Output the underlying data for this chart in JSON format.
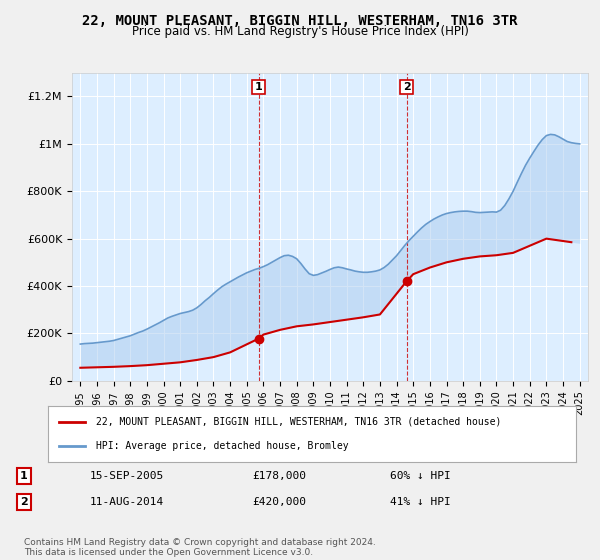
{
  "title": "22, MOUNT PLEASANT, BIGGIN HILL, WESTERHAM, TN16 3TR",
  "subtitle": "Price paid vs. HM Land Registry's House Price Index (HPI)",
  "legend_label_red": "22, MOUNT PLEASANT, BIGGIN HILL, WESTERHAM, TN16 3TR (detached house)",
  "legend_label_blue": "HPI: Average price, detached house, Bromley",
  "footer": "Contains HM Land Registry data © Crown copyright and database right 2024.\nThis data is licensed under the Open Government Licence v3.0.",
  "transaction1_label": "1",
  "transaction1_date": "15-SEP-2005",
  "transaction1_price": "£178,000",
  "transaction1_hpi": "60% ↓ HPI",
  "transaction2_label": "2",
  "transaction2_date": "11-AUG-2014",
  "transaction2_price": "£420,000",
  "transaction2_hpi": "41% ↓ HPI",
  "transaction1_x": 2005.71,
  "transaction1_y": 178000,
  "transaction2_x": 2014.6,
  "transaction2_y": 420000,
  "ylim": [
    0,
    1300000
  ],
  "xlim": [
    1994.5,
    2025.5
  ],
  "yticks": [
    0,
    200000,
    400000,
    600000,
    800000,
    1000000,
    1200000
  ],
  "ytick_labels": [
    "£0",
    "£200K",
    "£400K",
    "£600K",
    "£800K",
    "£1M",
    "£1.2M"
  ],
  "xticks": [
    1995,
    1996,
    1997,
    1998,
    1999,
    2000,
    2001,
    2002,
    2003,
    2004,
    2005,
    2006,
    2007,
    2008,
    2009,
    2010,
    2011,
    2012,
    2013,
    2014,
    2015,
    2016,
    2017,
    2018,
    2019,
    2020,
    2021,
    2022,
    2023,
    2024,
    2025
  ],
  "background_color": "#ddeeff",
  "plot_bg_color": "#ddeeff",
  "line_color_red": "#cc0000",
  "line_color_blue": "#6699cc",
  "marker_color_red": "#cc0000",
  "shade_color": "#aaccee",
  "vline_color": "#cc0000",
  "hpi_years": [
    1995,
    1995.25,
    1995.5,
    1995.75,
    1996,
    1996.25,
    1996.5,
    1996.75,
    1997,
    1997.25,
    1997.5,
    1997.75,
    1998,
    1998.25,
    1998.5,
    1998.75,
    1999,
    1999.25,
    1999.5,
    1999.75,
    2000,
    2000.25,
    2000.5,
    2000.75,
    2001,
    2001.25,
    2001.5,
    2001.75,
    2002,
    2002.25,
    2002.5,
    2002.75,
    2003,
    2003.25,
    2003.5,
    2003.75,
    2004,
    2004.25,
    2004.5,
    2004.75,
    2005,
    2005.25,
    2005.5,
    2005.75,
    2006,
    2006.25,
    2006.5,
    2006.75,
    2007,
    2007.25,
    2007.5,
    2007.75,
    2008,
    2008.25,
    2008.5,
    2008.75,
    2009,
    2009.25,
    2009.5,
    2009.75,
    2010,
    2010.25,
    2010.5,
    2010.75,
    2011,
    2011.25,
    2011.5,
    2011.75,
    2012,
    2012.25,
    2012.5,
    2012.75,
    2013,
    2013.25,
    2013.5,
    2013.75,
    2014,
    2014.25,
    2014.5,
    2014.75,
    2015,
    2015.25,
    2015.5,
    2015.75,
    2016,
    2016.25,
    2016.5,
    2016.75,
    2017,
    2017.25,
    2017.5,
    2017.75,
    2018,
    2018.25,
    2018.5,
    2018.75,
    2019,
    2019.25,
    2019.5,
    2019.75,
    2020,
    2020.25,
    2020.5,
    2020.75,
    2021,
    2021.25,
    2021.5,
    2021.75,
    2022,
    2022.25,
    2022.5,
    2022.75,
    2023,
    2023.25,
    2023.5,
    2023.75,
    2024,
    2024.25,
    2024.5,
    2024.75,
    2025
  ],
  "hpi_values": [
    155000,
    157000,
    158000,
    159000,
    161000,
    163000,
    165000,
    167000,
    170000,
    175000,
    180000,
    185000,
    190000,
    197000,
    204000,
    210000,
    218000,
    227000,
    236000,
    245000,
    255000,
    265000,
    272000,
    278000,
    284000,
    288000,
    292000,
    298000,
    308000,
    322000,
    338000,
    352000,
    368000,
    383000,
    397000,
    408000,
    418000,
    428000,
    438000,
    447000,
    456000,
    463000,
    470000,
    475000,
    482000,
    490000,
    500000,
    510000,
    520000,
    528000,
    530000,
    525000,
    515000,
    495000,
    472000,
    452000,
    445000,
    448000,
    455000,
    462000,
    470000,
    477000,
    480000,
    477000,
    472000,
    468000,
    463000,
    460000,
    458000,
    458000,
    460000,
    463000,
    468000,
    478000,
    492000,
    510000,
    528000,
    550000,
    572000,
    592000,
    610000,
    628000,
    645000,
    660000,
    672000,
    683000,
    692000,
    700000,
    706000,
    710000,
    713000,
    715000,
    716000,
    716000,
    714000,
    711000,
    710000,
    711000,
    712000,
    713000,
    712000,
    720000,
    740000,
    768000,
    800000,
    838000,
    875000,
    910000,
    940000,
    968000,
    995000,
    1018000,
    1035000,
    1040000,
    1038000,
    1030000,
    1020000,
    1010000,
    1005000,
    1002000,
    1000000
  ],
  "red_years": [
    1995,
    1996,
    1997,
    1998,
    1999,
    2000,
    2001,
    2002,
    2003,
    2004,
    2005.71,
    2006,
    2007,
    2008,
    2009,
    2010,
    2011,
    2012,
    2013,
    2014.6,
    2015,
    2016,
    2017,
    2018,
    2019,
    2020,
    2021,
    2022,
    2023,
    2024,
    2024.5
  ],
  "red_values": [
    55000,
    57000,
    59000,
    62000,
    66000,
    72000,
    78000,
    88000,
    100000,
    120000,
    178000,
    195000,
    215000,
    230000,
    238000,
    248000,
    258000,
    268000,
    280000,
    420000,
    450000,
    478000,
    500000,
    515000,
    525000,
    530000,
    540000,
    570000,
    600000,
    590000,
    585000
  ]
}
